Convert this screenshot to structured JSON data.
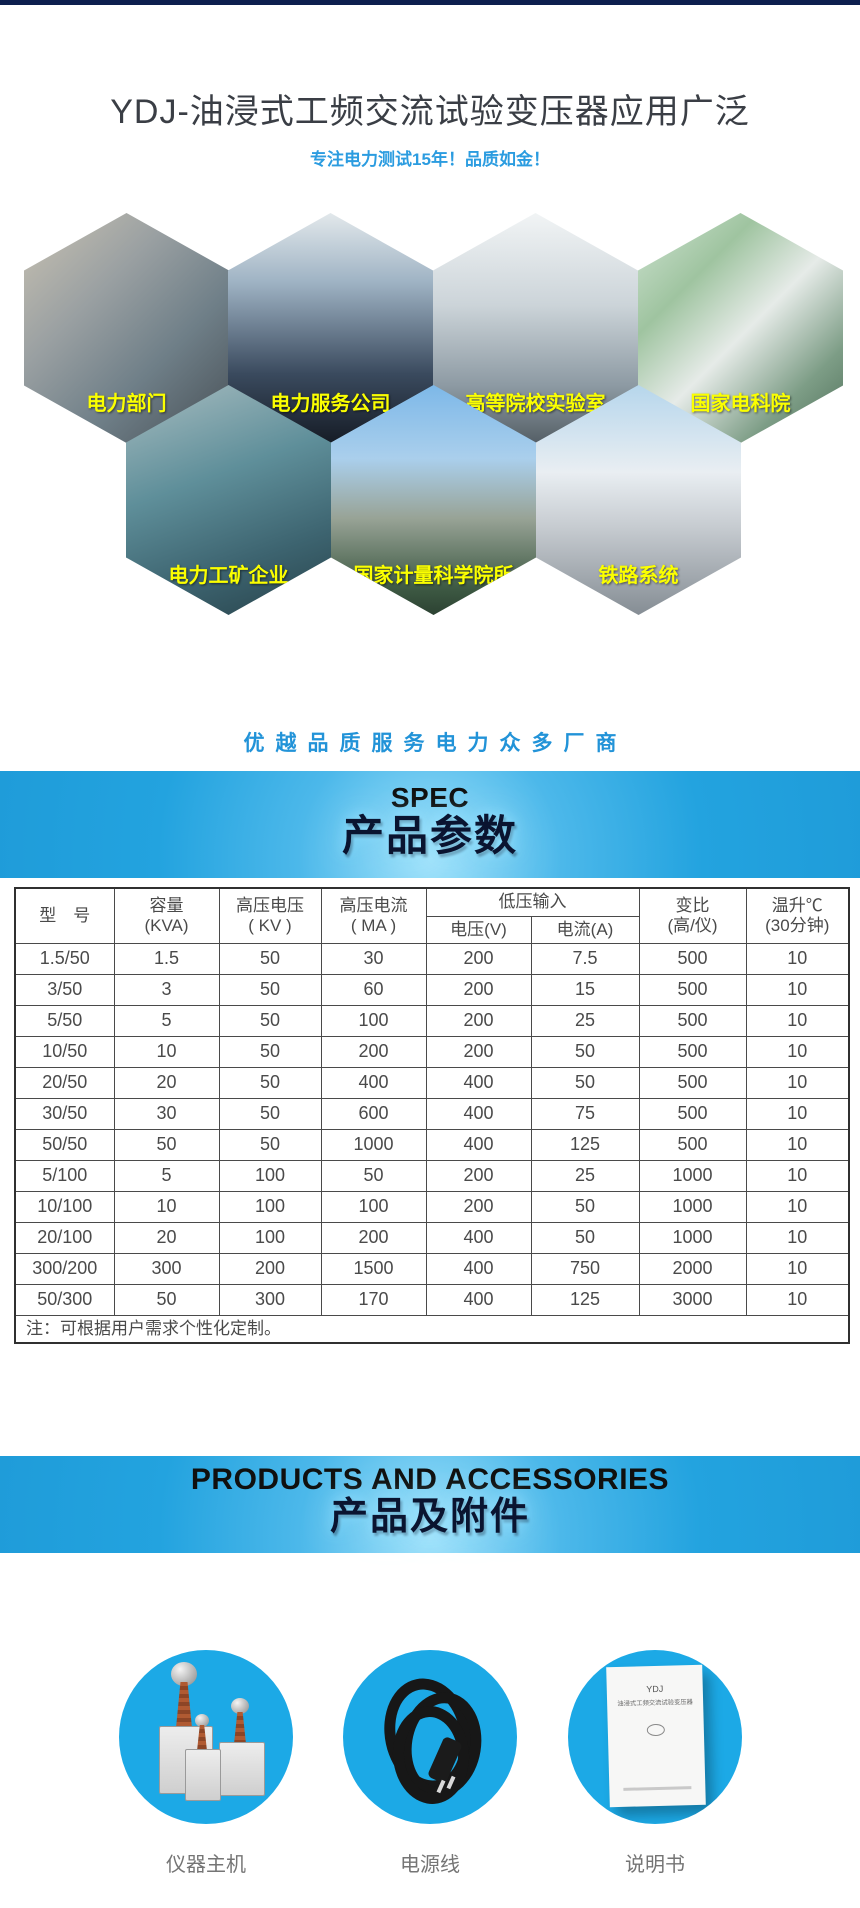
{
  "colors": {
    "top_bar": "#0d1f4e",
    "banner_blue": "#23a3df",
    "circle_blue": "#1ca9e6",
    "hex_label_yellow": "#fbff00",
    "subtitle_blue": "#2b9ce0",
    "tagline_blue": "#2293d8"
  },
  "header": {
    "title": "YDJ-油浸式工频交流试验变压器应用广泛",
    "subtitle": "专注电力测试15年！品质如金！"
  },
  "hex_sections": {
    "items": [
      {
        "label": "电力部门"
      },
      {
        "label": "电力服务公司"
      },
      {
        "label": "高等院校实验室"
      },
      {
        "label": "国家电科院"
      },
      {
        "label": "电力工矿企业"
      },
      {
        "label": "国家计量科学院所"
      },
      {
        "label": "铁路系统"
      }
    ]
  },
  "tagline": "优越品质服务电力众多厂商",
  "spec_banner": {
    "title_en": "SPEC",
    "title_cn": "产品参数"
  },
  "spec_table": {
    "headers": {
      "model": "型　号",
      "capacity_1": "容量",
      "capacity_2": "(KVA)",
      "hv_voltage_1": "高压电压",
      "hv_voltage_2": "( KV )",
      "hv_current_1": "高压电流",
      "hv_current_2": "( MA )",
      "lv_group": "低压输入",
      "lv_voltage": "电压(V)",
      "lv_current": "电流(A)",
      "ratio_1": "变比",
      "ratio_2": "(高/仪)",
      "temp_1": "温升℃",
      "temp_2": "(30分钟)"
    },
    "rows": [
      [
        "1.5/50",
        "1.5",
        "50",
        "30",
        "200",
        "7.5",
        "500",
        "10"
      ],
      [
        "3/50",
        "3",
        "50",
        "60",
        "200",
        "15",
        "500",
        "10"
      ],
      [
        "5/50",
        "5",
        "50",
        "100",
        "200",
        "25",
        "500",
        "10"
      ],
      [
        "10/50",
        "10",
        "50",
        "200",
        "200",
        "50",
        "500",
        "10"
      ],
      [
        "20/50",
        "20",
        "50",
        "400",
        "400",
        "50",
        "500",
        "10"
      ],
      [
        "30/50",
        "30",
        "50",
        "600",
        "400",
        "75",
        "500",
        "10"
      ],
      [
        "50/50",
        "50",
        "50",
        "1000",
        "400",
        "125",
        "500",
        "10"
      ],
      [
        "5/100",
        "5",
        "100",
        "50",
        "200",
        "25",
        "1000",
        "10"
      ],
      [
        "10/100",
        "10",
        "100",
        "100",
        "200",
        "50",
        "1000",
        "10"
      ],
      [
        "20/100",
        "20",
        "100",
        "200",
        "400",
        "50",
        "1000",
        "10"
      ],
      [
        "300/200",
        "300",
        "200",
        "1500",
        "400",
        "750",
        "2000",
        "10"
      ],
      [
        "50/300",
        "50",
        "300",
        "170",
        "400",
        "125",
        "3000",
        "10"
      ]
    ],
    "note": "注：可根据用户需求个性化定制。"
  },
  "products_banner": {
    "title_en": "PRODUCTS AND ACCESSORIES",
    "title_cn": "产品及附件"
  },
  "accessories": {
    "items": [
      {
        "label": "仪器主机"
      },
      {
        "label": "电源线"
      },
      {
        "label": "说明书"
      }
    ],
    "manual_text": {
      "line1": "YDJ",
      "line2": "油浸式工频交流试验变压器"
    }
  }
}
